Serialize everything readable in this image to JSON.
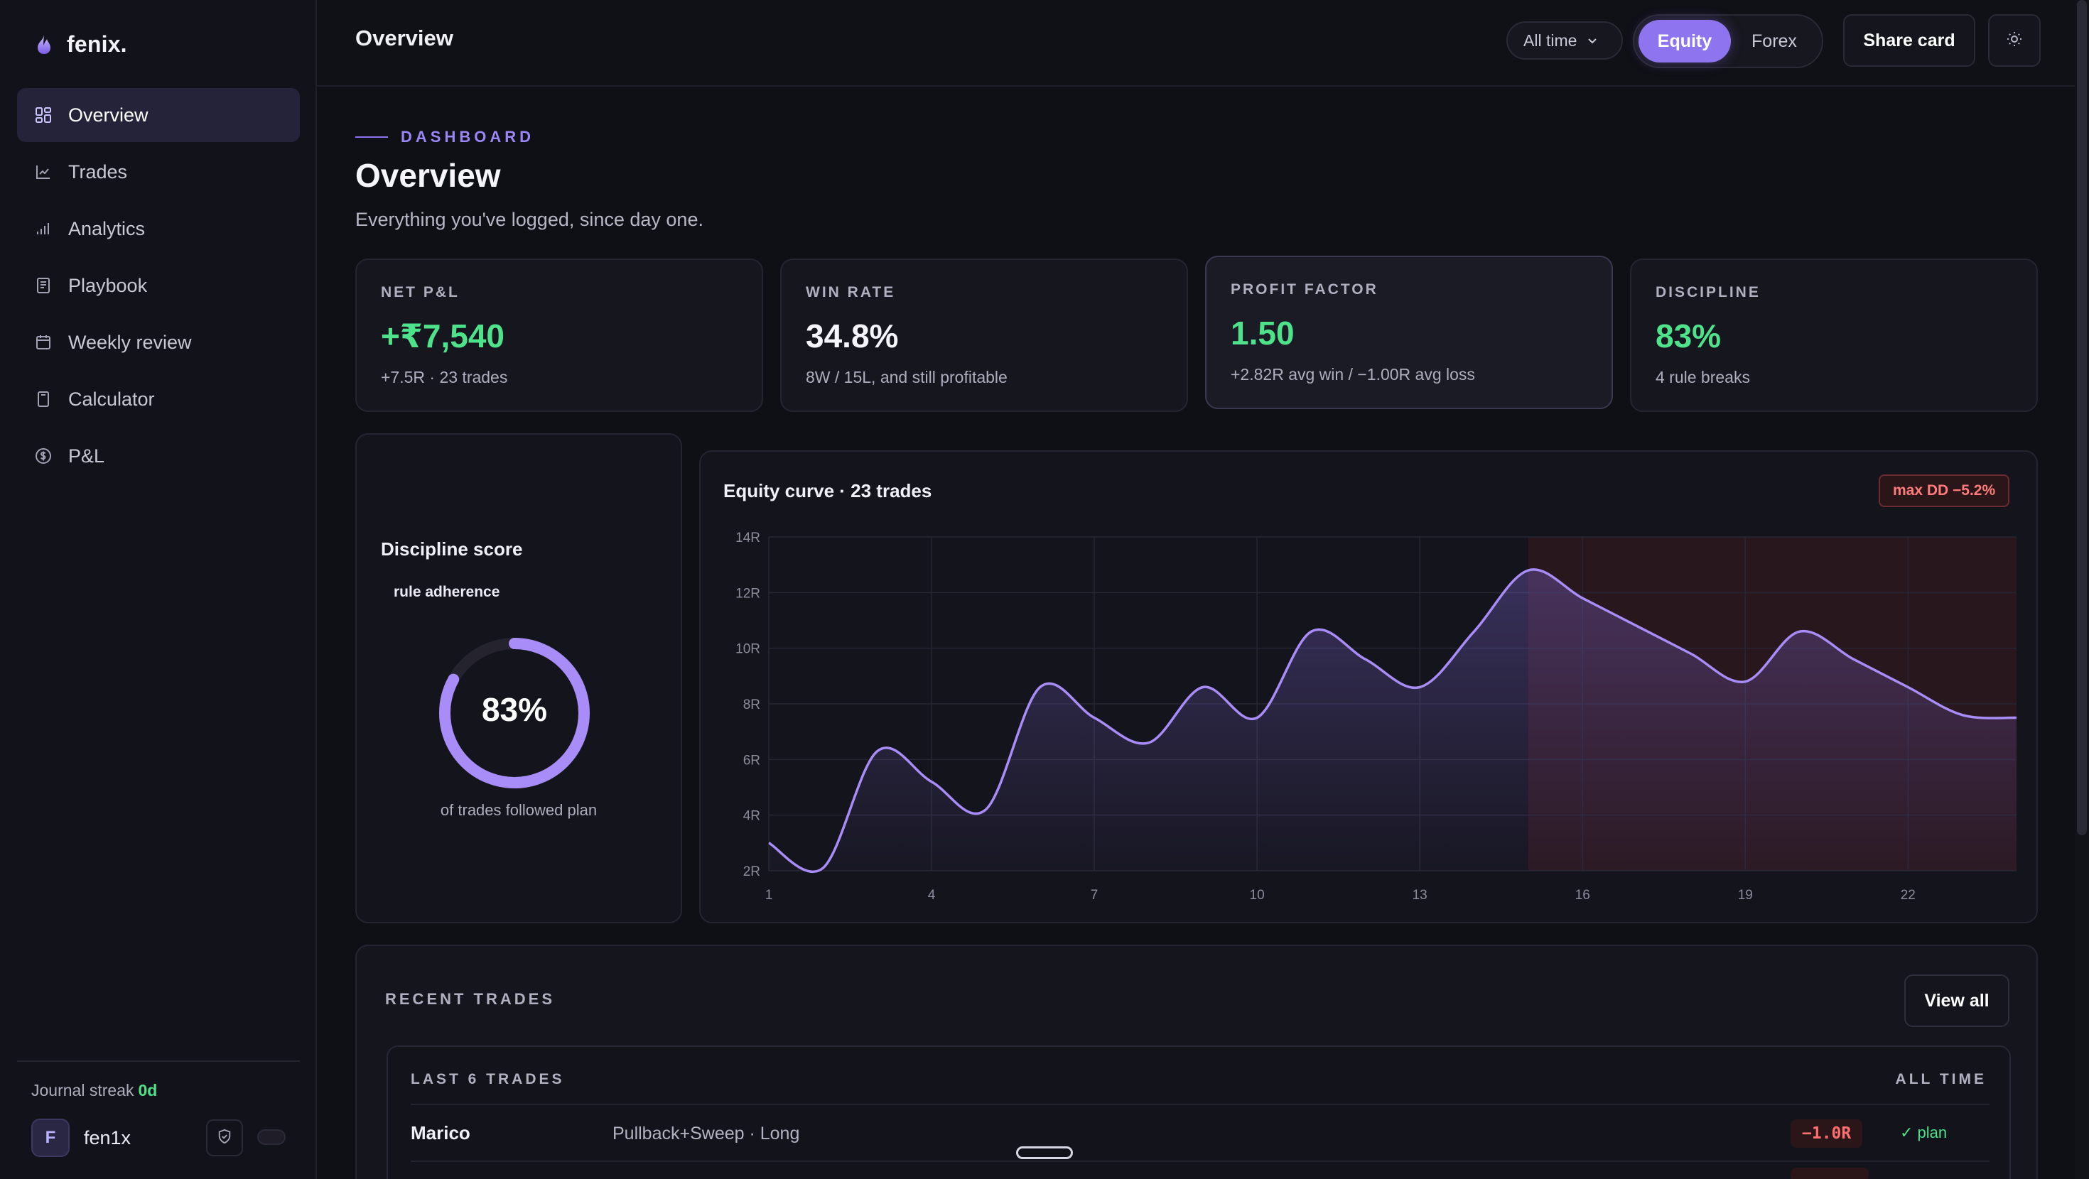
{
  "brand": {
    "name": "fenix."
  },
  "sidebar": {
    "items": [
      {
        "label": "Overview",
        "icon": "grid-icon",
        "active": true
      },
      {
        "label": "Trades",
        "icon": "line-chart-icon"
      },
      {
        "label": "Analytics",
        "icon": "bar-chart-icon"
      },
      {
        "label": "Playbook",
        "icon": "book-icon"
      },
      {
        "label": "Weekly review",
        "icon": "calendar-icon"
      },
      {
        "label": "Calculator",
        "icon": "calculator-icon"
      },
      {
        "label": "P&L",
        "icon": "currency-icon"
      }
    ],
    "streak_label": "Journal streak",
    "streak_value": "0d",
    "user": {
      "initial": "F",
      "name": "fen1x"
    }
  },
  "topbar": {
    "title": "Overview",
    "range": "All time",
    "segments": [
      "Equity",
      "Forex"
    ],
    "active_segment": "Equity",
    "share_label": "Share card"
  },
  "header": {
    "eyebrow": "DASHBOARD",
    "title": "Overview",
    "subtitle": "Everything you've logged, since day one."
  },
  "stats": [
    {
      "label": "NET P&L",
      "value": "+₹7,540",
      "sub": "+7.5R · 23 trades",
      "green": true
    },
    {
      "label": "WIN RATE",
      "value": "34.8%",
      "sub": "8W / 15L, and still profitable",
      "green": false
    },
    {
      "label": "PROFIT FACTOR",
      "value": "1.50",
      "sub": "+2.82R avg win / −1.00R avg loss",
      "green": true
    },
    {
      "label": "DISCIPLINE",
      "value": "83%",
      "sub": "4 rule breaks",
      "green": true
    }
  ],
  "discipline": {
    "title": "Discipline score",
    "subtitle": "rule adherence",
    "value": "83%",
    "fraction": 0.83,
    "footnote": "of trades followed plan"
  },
  "chart": {
    "title": "Equity curve · 23 trades",
    "badge": "max DD −5.2%"
  },
  "chart_data": {
    "type": "area",
    "title": "Equity curve · 23 trades",
    "xlabel": "",
    "ylabel": "",
    "x": [
      1,
      2,
      3,
      4,
      5,
      6,
      7,
      8,
      9,
      10,
      11,
      12,
      13,
      14,
      15,
      16,
      17,
      18,
      19,
      20,
      21,
      22,
      23,
      24
    ],
    "values": [
      3.0,
      2.1,
      6.3,
      5.2,
      4.2,
      8.6,
      7.5,
      6.6,
      8.6,
      7.5,
      10.6,
      9.6,
      8.6,
      10.6,
      12.8,
      11.8,
      10.8,
      9.8,
      8.8,
      10.6,
      9.6,
      8.6,
      7.6,
      7.5
    ],
    "xlim": [
      1,
      24
    ],
    "ylim": [
      2,
      14
    ],
    "x_ticks": [
      1,
      4,
      7,
      10,
      13,
      16,
      19,
      22
    ],
    "y_ticks": [
      2,
      4,
      6,
      8,
      10,
      12,
      14
    ],
    "y_tick_labels": [
      "2R",
      "4R",
      "6R",
      "8R",
      "10R",
      "12R",
      "14R"
    ],
    "drawdown_start_x": 15,
    "max_drawdown": "−5.2%",
    "grid": true,
    "line_color": "#a88cf7",
    "drawdown_color": "#3a1a20"
  },
  "recent": {
    "title": "RECENT TRADES",
    "view_all": "View all",
    "table_left": "LAST 6 TRADES",
    "table_right": "ALL TIME",
    "rows": [
      {
        "symbol": "Marico",
        "setup": "Pullback+Sweep · Long",
        "r": "−1.0R",
        "plan": "✓ plan"
      }
    ]
  },
  "colors": {
    "accent": "#8f74ef",
    "green": "#4ee28a",
    "red": "#ff6f6f",
    "background": "#0f0f16"
  }
}
